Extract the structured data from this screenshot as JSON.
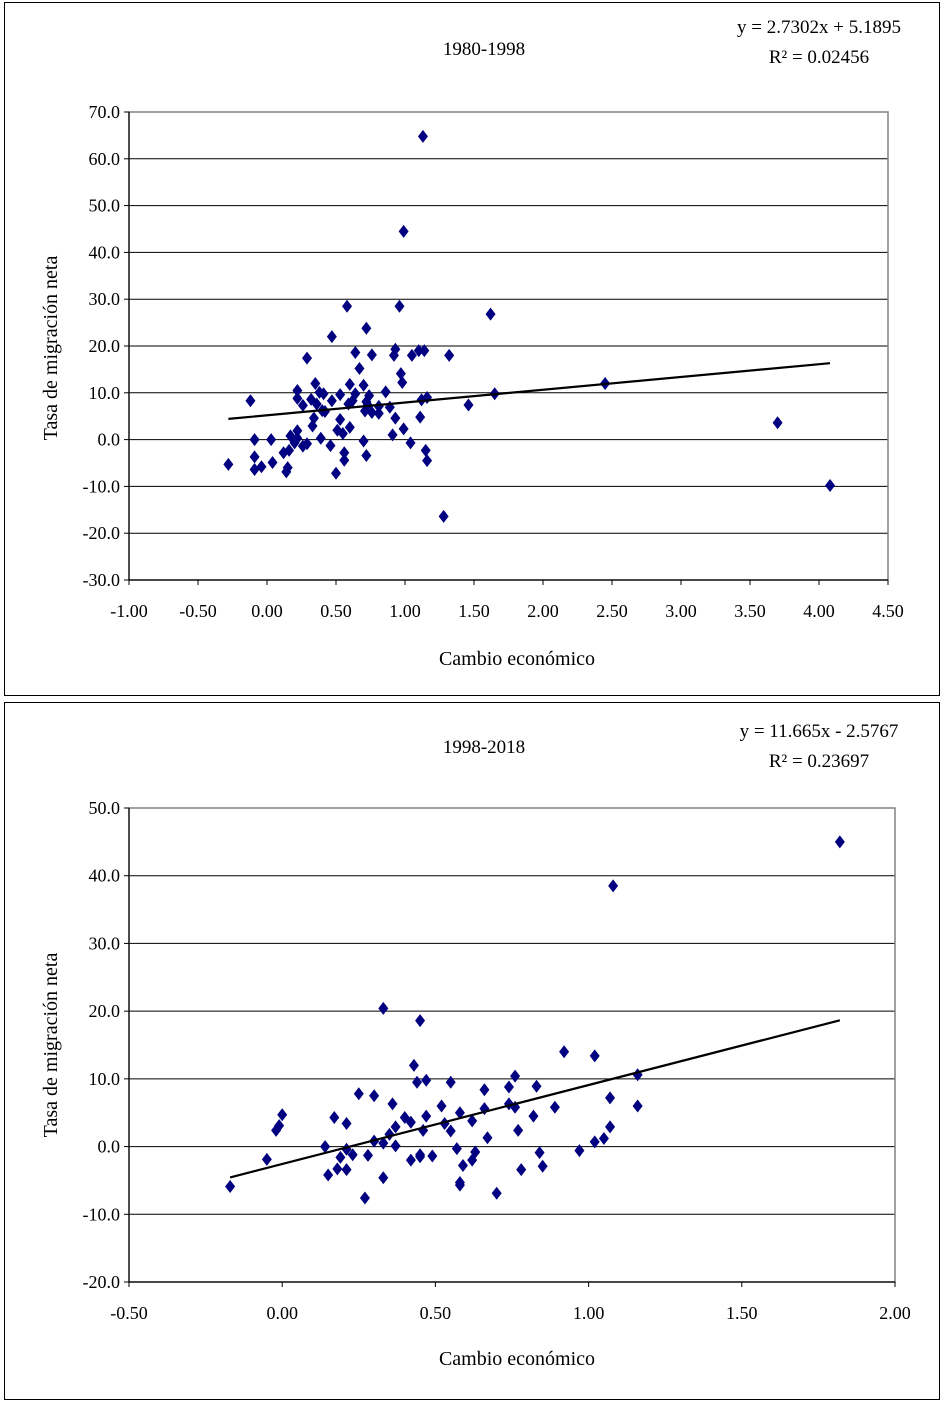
{
  "colors": {
    "marker": "#000080",
    "line": "#000000",
    "grid": "#000000"
  },
  "chart_data": [
    {
      "type": "scatter",
      "title": "1980-1998",
      "xlabel": "Cambio económico",
      "ylabel": "Tasa de migración neta",
      "equation": "y = 2.7302x + 5.1895",
      "r2": "R² = 0.02456",
      "trend": {
        "slope": 2.7302,
        "intercept": 5.1895,
        "x_range": [
          -0.28,
          4.08
        ]
      },
      "xlim": [
        -1.0,
        4.5
      ],
      "ylim": [
        -30.0,
        70.0
      ],
      "xticks": [
        "-1.00",
        "-0.50",
        "0.00",
        "0.50",
        "1.00",
        "1.50",
        "2.00",
        "2.50",
        "3.00",
        "3.50",
        "4.00",
        "4.50"
      ],
      "yticks": [
        "-30.0",
        "-20.0",
        "-10.0",
        "0.0",
        "10.0",
        "20.0",
        "30.0",
        "40.0",
        "50.0",
        "60.0",
        "70.0"
      ],
      "points": [
        [
          1.13,
          64.8
        ],
        [
          0.99,
          44.5
        ],
        [
          0.58,
          28.5
        ],
        [
          0.96,
          28.5
        ],
        [
          1.62,
          26.8
        ],
        [
          0.72,
          23.8
        ],
        [
          0.47,
          22.0
        ],
        [
          0.29,
          17.4
        ],
        [
          0.64,
          18.6
        ],
        [
          0.76,
          18.1
        ],
        [
          0.92,
          18.0
        ],
        [
          0.93,
          19.3
        ],
        [
          1.05,
          18.0
        ],
        [
          1.1,
          19.0
        ],
        [
          1.14,
          19.0
        ],
        [
          1.32,
          18.0
        ],
        [
          0.67,
          15.2
        ],
        [
          0.97,
          14.1
        ],
        [
          0.98,
          12.2
        ],
        [
          0.35,
          12.0
        ],
        [
          0.6,
          11.8
        ],
        [
          0.7,
          11.6
        ],
        [
          2.45,
          12.0
        ],
        [
          0.22,
          10.5
        ],
        [
          0.38,
          10.1
        ],
        [
          0.41,
          9.8
        ],
        [
          0.53,
          9.6
        ],
        [
          0.64,
          9.8
        ],
        [
          0.74,
          9.4
        ],
        [
          0.86,
          10.2
        ],
        [
          1.65,
          9.8
        ],
        [
          0.22,
          8.8
        ],
        [
          0.32,
          8.6
        ],
        [
          0.47,
          8.3
        ],
        [
          0.62,
          8.3
        ],
        [
          0.72,
          8.1
        ],
        [
          1.12,
          8.5
        ],
        [
          1.16,
          9.0
        ],
        [
          0.26,
          7.3
        ],
        [
          0.36,
          7.6
        ],
        [
          0.59,
          7.6
        ],
        [
          0.73,
          7.4
        ],
        [
          0.81,
          7.1
        ],
        [
          0.89,
          6.9
        ],
        [
          1.46,
          7.4
        ],
        [
          0.4,
          6.2
        ],
        [
          0.71,
          6.1
        ],
        [
          0.76,
          5.8
        ],
        [
          0.81,
          5.6
        ],
        [
          0.34,
          4.6
        ],
        [
          0.53,
          4.3
        ],
        [
          0.93,
          4.6
        ],
        [
          1.11,
          4.8
        ],
        [
          3.7,
          3.6
        ],
        [
          0.33,
          2.9
        ],
        [
          0.6,
          2.6
        ],
        [
          0.99,
          2.3
        ],
        [
          0.22,
          1.9
        ],
        [
          0.55,
          1.3
        ],
        [
          0.91,
          1.0
        ],
        [
          0.17,
          0.8
        ],
        [
          0.39,
          0.3
        ],
        [
          0.7,
          -0.3
        ],
        [
          -0.09,
          0.0
        ],
        [
          0.03,
          0.0
        ],
        [
          0.2,
          -0.7
        ],
        [
          0.29,
          -0.9
        ],
        [
          0.26,
          -1.4
        ],
        [
          0.46,
          -1.3
        ],
        [
          0.16,
          -2.3
        ],
        [
          0.12,
          -2.8
        ],
        [
          1.04,
          -0.7
        ],
        [
          1.15,
          -2.3
        ],
        [
          0.56,
          -2.8
        ],
        [
          0.72,
          -3.4
        ],
        [
          -0.09,
          -3.7
        ],
        [
          0.04,
          -4.9
        ],
        [
          -0.28,
          -5.3
        ],
        [
          -0.04,
          -5.8
        ],
        [
          0.15,
          -6.0
        ],
        [
          -0.09,
          -6.4
        ],
        [
          0.14,
          -6.9
        ],
        [
          0.5,
          -7.2
        ],
        [
          0.56,
          -4.4
        ],
        [
          1.16,
          -4.5
        ],
        [
          -0.12,
          8.3
        ],
        [
          4.08,
          -9.8
        ],
        [
          1.28,
          -16.4
        ],
        [
          0.22,
          0.3
        ],
        [
          0.42,
          6.0
        ],
        [
          0.51,
          2.0
        ]
      ]
    },
    {
      "type": "scatter",
      "title": "1998-2018",
      "xlabel": "Cambio económico",
      "ylabel": "Tasa de migración neta",
      "equation": "y = 11.665x - 2.5767",
      "r2": "R² = 0.23697",
      "trend": {
        "slope": 11.665,
        "intercept": -2.5767,
        "x_range": [
          -0.17,
          1.82
        ]
      },
      "xlim": [
        -0.5,
        2.0
      ],
      "ylim": [
        -20.0,
        50.0
      ],
      "xticks": [
        "-0.50",
        "0.00",
        "0.50",
        "1.00",
        "1.50",
        "2.00"
      ],
      "yticks": [
        "-20.0",
        "-10.0",
        "0.0",
        "10.0",
        "20.0",
        "30.0",
        "40.0",
        "50.0"
      ],
      "points": [
        [
          1.82,
          45.0
        ],
        [
          1.08,
          38.5
        ],
        [
          0.33,
          20.4
        ],
        [
          0.45,
          18.6
        ],
        [
          0.92,
          14.0
        ],
        [
          1.02,
          13.4
        ],
        [
          0.43,
          12.0
        ],
        [
          1.16,
          10.6
        ],
        [
          0.76,
          10.4
        ],
        [
          0.44,
          9.5
        ],
        [
          0.47,
          9.8
        ],
        [
          0.55,
          9.5
        ],
        [
          0.66,
          8.4
        ],
        [
          0.74,
          8.8
        ],
        [
          0.83,
          8.9
        ],
        [
          0.25,
          7.8
        ],
        [
          0.3,
          7.5
        ],
        [
          1.07,
          7.2
        ],
        [
          0.36,
          6.3
        ],
        [
          0.66,
          5.6
        ],
        [
          0.76,
          5.8
        ],
        [
          0.89,
          5.8
        ],
        [
          1.16,
          6.0
        ],
        [
          0.52,
          6.0
        ],
        [
          0.58,
          5.0
        ],
        [
          0.82,
          4.5
        ],
        [
          0.0,
          4.7
        ],
        [
          0.17,
          4.3
        ],
        [
          0.4,
          4.3
        ],
        [
          0.47,
          4.5
        ],
        [
          0.62,
          3.8
        ],
        [
          0.53,
          3.4
        ],
        [
          -0.01,
          3.1
        ],
        [
          -0.02,
          2.4
        ],
        [
          0.21,
          3.4
        ],
        [
          0.37,
          2.9
        ],
        [
          0.42,
          3.6
        ],
        [
          0.35,
          1.8
        ],
        [
          0.46,
          2.4
        ],
        [
          0.55,
          2.3
        ],
        [
          0.67,
          1.3
        ],
        [
          0.74,
          6.3
        ],
        [
          0.77,
          2.4
        ],
        [
          1.07,
          2.9
        ],
        [
          0.3,
          0.8
        ],
        [
          0.33,
          0.5
        ],
        [
          0.14,
          0.0
        ],
        [
          0.37,
          0.1
        ],
        [
          0.21,
          -0.4
        ],
        [
          0.57,
          -0.3
        ],
        [
          0.97,
          -0.6
        ],
        [
          1.05,
          1.2
        ],
        [
          1.02,
          0.7
        ],
        [
          0.23,
          -1.2
        ],
        [
          0.19,
          -1.6
        ],
        [
          0.28,
          -1.3
        ],
        [
          0.42,
          -2.0
        ],
        [
          0.45,
          -1.5
        ],
        [
          0.49,
          -1.4
        ],
        [
          0.63,
          -0.8
        ],
        [
          0.84,
          -0.9
        ],
        [
          -0.05,
          -1.9
        ],
        [
          0.15,
          -4.2
        ],
        [
          0.18,
          -3.3
        ],
        [
          0.21,
          -3.4
        ],
        [
          0.33,
          -4.6
        ],
        [
          0.59,
          -2.8
        ],
        [
          0.78,
          -3.4
        ],
        [
          0.85,
          -2.9
        ],
        [
          0.58,
          -5.3
        ],
        [
          0.58,
          -5.7
        ],
        [
          0.7,
          -6.9
        ],
        [
          -0.17,
          -5.9
        ],
        [
          0.27,
          -7.6
        ],
        [
          0.45,
          -1.2
        ],
        [
          0.62,
          -2.0
        ]
      ]
    }
  ]
}
